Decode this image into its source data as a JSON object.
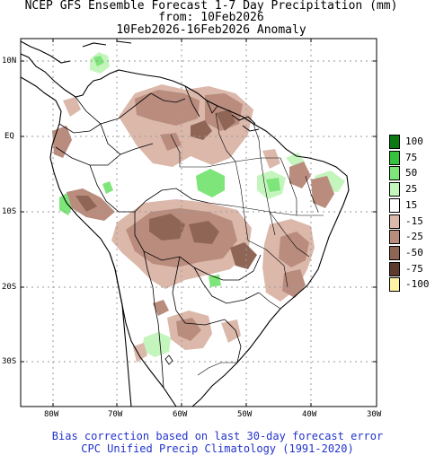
{
  "header": {
    "title": "NCEP GFS Ensemble Forecast 1-7 Day Precipitation (mm)",
    "from": "from: 10Feb2026",
    "period": "10Feb2026-16Feb2026 Anomaly"
  },
  "map": {
    "lat_labels": [
      "10N",
      "EQ",
      "10S",
      "20S",
      "30S"
    ],
    "lon_labels": [
      "80W",
      "70W",
      "60W",
      "50W",
      "40W",
      "30W"
    ]
  },
  "legend": {
    "items": [
      {
        "label": "100",
        "color": "#0b7a14"
      },
      {
        "label": "75",
        "color": "#35c23c"
      },
      {
        "label": "50",
        "color": "#7ee57a"
      },
      {
        "label": "25",
        "color": "#c4f5bd"
      },
      {
        "label": "15",
        "color": "#ffffff"
      },
      {
        "label": "-15",
        "color": "#dbb8aa"
      },
      {
        "label": "-25",
        "color": "#b98c7e"
      },
      {
        "label": "-50",
        "color": "#8f6656"
      },
      {
        "label": "-75",
        "color": "#5c3a2e"
      },
      {
        "label": "-100",
        "color": "#fdf3a6"
      }
    ]
  },
  "footer": {
    "line1": "Bias correction based on last 30-day forecast error",
    "line2": "CPC Unified Precip Climatology (1991-2020)"
  }
}
